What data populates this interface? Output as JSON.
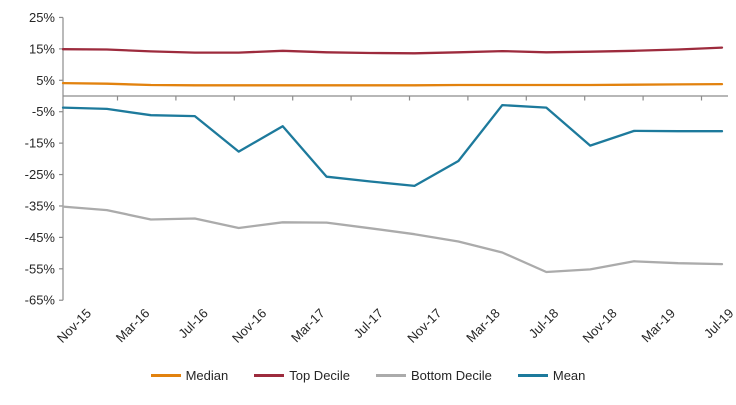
{
  "chart_data": {
    "type": "line",
    "title": "",
    "xlabel": "",
    "ylabel": "",
    "grid": false,
    "background": "#ffffff",
    "text_color": "#262626",
    "axis_color": "#8C8C8C",
    "ylim": [
      -65,
      25
    ],
    "y_tick_labels": [
      "25%",
      "15%",
      "5%",
      "-5%",
      "-15%",
      "-25%",
      "-35%",
      "-45%",
      "-55%",
      "-65%"
    ],
    "x_tick_labels": [
      "Nov-15",
      "Mar-16",
      "Jul-16",
      "Nov-16",
      "Mar-17",
      "Jul-17",
      "Nov-17",
      "Mar-18",
      "Jul-18",
      "Nov-18",
      "Mar-19",
      "Jul-19"
    ],
    "x": [
      "Nov-15",
      "Feb-16",
      "May-16",
      "Aug-16",
      "Nov-16",
      "Feb-17",
      "May-17",
      "Aug-17",
      "Nov-17",
      "Feb-18",
      "May-18",
      "Aug-18",
      "Nov-18",
      "Feb-19",
      "May-19",
      "Jul-19"
    ],
    "legend_position": "bottom",
    "series": [
      {
        "name": "Median",
        "color": "#E2820E",
        "values": [
          4.1,
          3.9,
          3.5,
          3.4,
          3.4,
          3.4,
          3.4,
          3.4,
          3.4,
          3.5,
          3.5,
          3.5,
          3.5,
          3.6,
          3.7,
          3.8
        ]
      },
      {
        "name": "Top Decile",
        "color": "#9D2B3D",
        "values": [
          14.9,
          14.8,
          14.2,
          13.8,
          13.8,
          14.4,
          13.9,
          13.7,
          13.6,
          13.9,
          14.3,
          13.9,
          14.1,
          14.4,
          14.8,
          15.4
        ]
      },
      {
        "name": "Bottom Decile",
        "color": "#ABABAB",
        "values": [
          -35.2,
          -36.3,
          -39.3,
          -39.0,
          -42.0,
          -40.2,
          -40.3,
          -42.1,
          -44.0,
          -46.3,
          -49.8,
          -56.0,
          -55.2,
          -52.6,
          -53.2,
          -53.5
        ]
      },
      {
        "name": "Mean",
        "color": "#1D7A9C",
        "values": [
          -3.7,
          -4.1,
          -6.1,
          -6.4,
          -17.7,
          -9.6,
          -25.7,
          -27.2,
          -28.6,
          -20.7,
          -2.9,
          -3.7,
          -15.8,
          -11.1,
          -11.2,
          -11.2
        ]
      }
    ]
  }
}
